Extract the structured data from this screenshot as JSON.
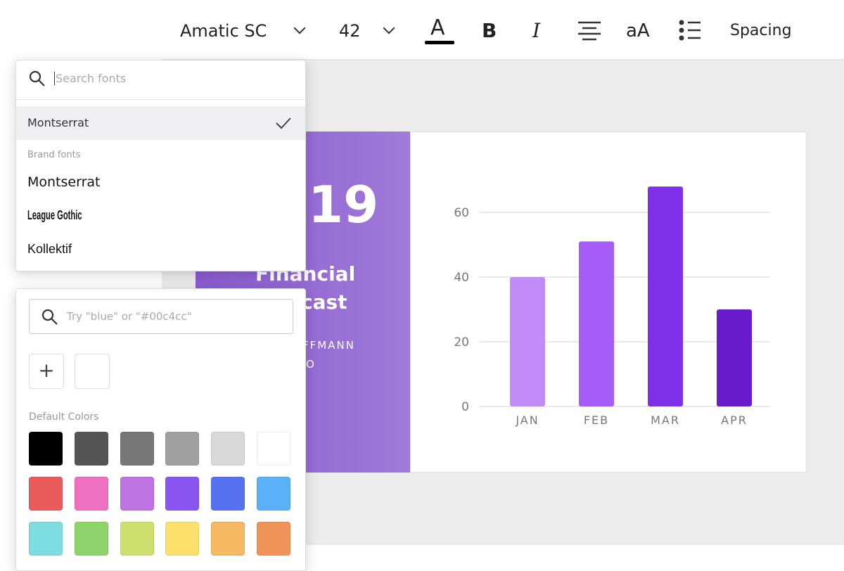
{
  "toolbar": {
    "font": "Amatic SC",
    "size": "42",
    "text_color": "A",
    "bold": "B",
    "italic": "I",
    "case": "aA",
    "spacing": "Spacing"
  },
  "font_picker": {
    "search_placeholder": "Search fonts",
    "selected": "Montserrat",
    "section": "Brand fonts",
    "fonts": [
      "Montserrat",
      "League Gothic",
      "Kollektif"
    ]
  },
  "color_picker": {
    "search_placeholder": "Try \"blue\" or \"#00c4cc\"",
    "add": "+",
    "section": "Default Colors",
    "default_colors": [
      "#000000",
      "#555555",
      "#777777",
      "#a0a0a0",
      "#d9d9d9",
      "#ffffff",
      "#ea5c5c",
      "#ef6fc0",
      "#bf72e1",
      "#8a54f0",
      "#5772f0",
      "#5ab1f7",
      "#7edde3",
      "#8fd46a",
      "#cde06e",
      "#fde06c",
      "#f5b962",
      "#f0945a"
    ]
  },
  "design": {
    "year": "19",
    "title_line1": "Financial",
    "title_line2": "cast",
    "author": "FFMANN",
    "role": "O"
  },
  "chart_data": {
    "type": "bar",
    "categories": [
      "JAN",
      "FEB",
      "MAR",
      "APR"
    ],
    "values": [
      40,
      51,
      68,
      30
    ],
    "colors": [
      "#c18cf8",
      "#a55cf7",
      "#8030e8",
      "#6a1bcc"
    ],
    "ylim": [
      0,
      70
    ],
    "yticks": [
      0,
      20,
      40,
      60
    ],
    "grid": true
  }
}
